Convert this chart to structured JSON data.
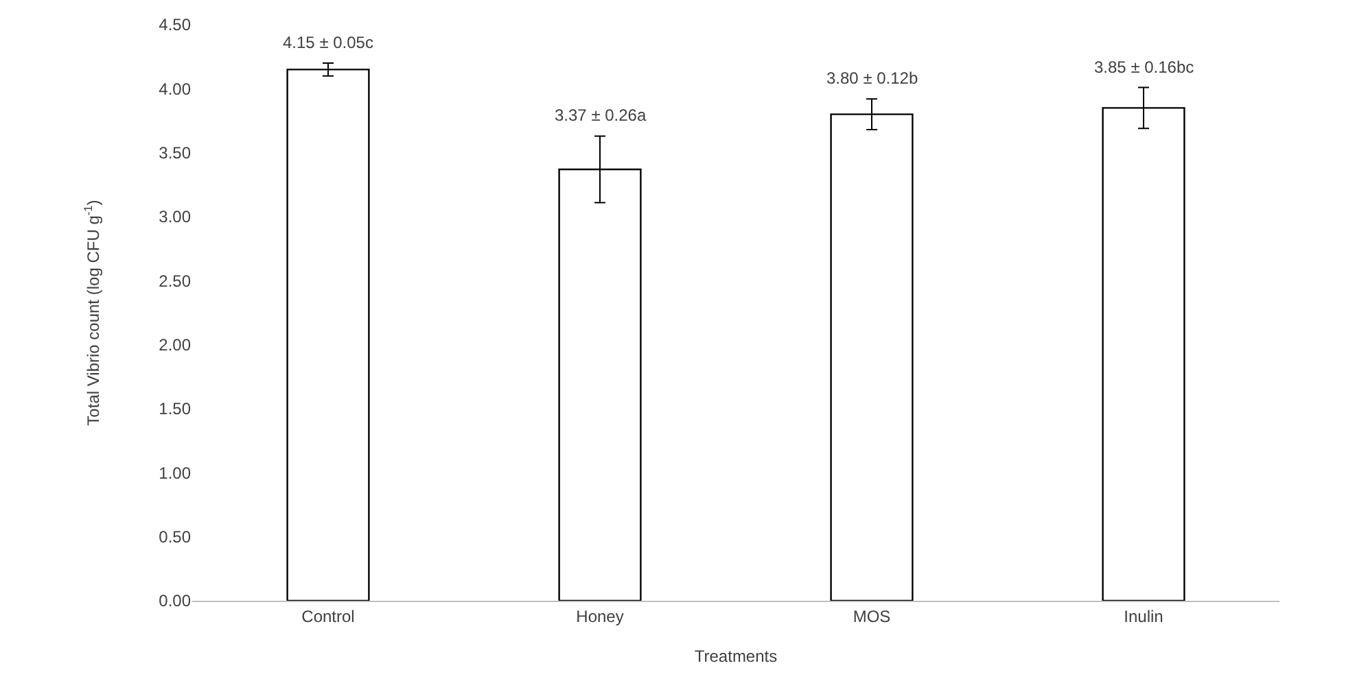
{
  "chart_data": {
    "type": "bar",
    "xlabel": "Treatments",
    "ylabel": "Total Vibrio count (log CFU g$^{-1}$)",
    "categories": [
      "Control",
      "Honey",
      "MOS",
      "Inulin"
    ],
    "values": [
      4.15,
      3.37,
      3.8,
      3.85
    ],
    "errors": [
      0.05,
      0.26,
      0.12,
      0.16
    ],
    "value_labels": [
      "4.15 ± 0.05c",
      "3.37 ± 0.26a",
      "3.80 ± 0.12b",
      "3.85 ± 0.16bc"
    ],
    "color": "#ffffff",
    "ylim": [
      0,
      4.5
    ],
    "yticks": [
      {
        "value": 0,
        "label": "0.00"
      },
      {
        "value": 0.5,
        "label": "0.50"
      },
      {
        "value": 1,
        "label": "1.00"
      },
      {
        "value": 1.5,
        "label": "1.50"
      },
      {
        "value": 2,
        "label": "2.00"
      },
      {
        "value": 2.5,
        "label": "2.50"
      },
      {
        "value": 3,
        "label": "3.00"
      },
      {
        "value": 3.5,
        "label": "3.50"
      },
      {
        "value": 4,
        "label": "4.00"
      },
      {
        "value": 4.5,
        "label": "4.50"
      }
    ],
    "grid": false,
    "legend": false
  }
}
